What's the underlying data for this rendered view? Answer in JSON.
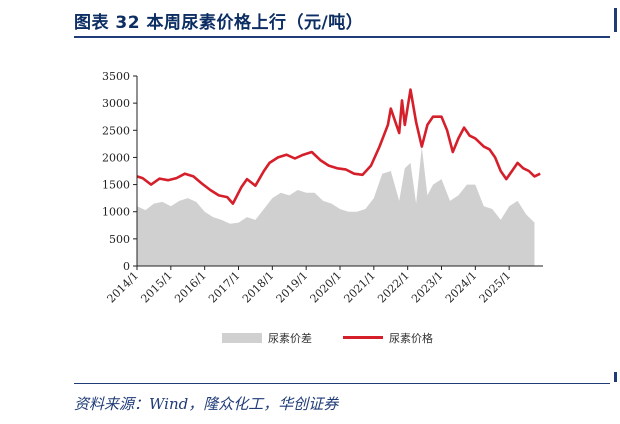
{
  "header": {
    "title": "图表 32   本周尿素价格上行（元/吨）"
  },
  "source": {
    "text": "资料来源：Wind，隆众化工，华创证券"
  },
  "colors": {
    "price": "#d51f2a",
    "spread": "#d0d0d0",
    "accent": "#1f3b78"
  },
  "chart_data": {
    "type": "area",
    "title": "本周尿素价格上行（元/吨）",
    "xlabel": "",
    "ylabel": "",
    "ylim": [
      0,
      3500
    ],
    "yticks": [
      0,
      500,
      1000,
      1500,
      2000,
      2500,
      3000,
      3500
    ],
    "xlim": [
      "2014-01",
      "2026-01"
    ],
    "xticks": [
      "2014/1",
      "2015/1",
      "2016/1",
      "2017/1",
      "2018/1",
      "2019/1",
      "2020/1",
      "2021/1",
      "2022/1",
      "2023/1",
      "2024/1",
      "2025/1"
    ],
    "grid": false,
    "legend": "bottom-center",
    "series": [
      {
        "name": "尿素价差",
        "type": "area",
        "color": "#d0d0d0",
        "points": [
          [
            "2014-01",
            1100
          ],
          [
            "2014-04",
            1030
          ],
          [
            "2014-07",
            1150
          ],
          [
            "2014-10",
            1180
          ],
          [
            "2015-01",
            1100
          ],
          [
            "2015-04",
            1200
          ],
          [
            "2015-07",
            1250
          ],
          [
            "2015-10",
            1180
          ],
          [
            "2016-01",
            1000
          ],
          [
            "2016-04",
            900
          ],
          [
            "2016-07",
            850
          ],
          [
            "2016-10",
            780
          ],
          [
            "2017-01",
            800
          ],
          [
            "2017-04",
            900
          ],
          [
            "2017-07",
            850
          ],
          [
            "2017-10",
            1050
          ],
          [
            "2018-01",
            1250
          ],
          [
            "2018-04",
            1350
          ],
          [
            "2018-07",
            1300
          ],
          [
            "2018-10",
            1400
          ],
          [
            "2019-01",
            1350
          ],
          [
            "2019-04",
            1350
          ],
          [
            "2019-07",
            1200
          ],
          [
            "2019-10",
            1150
          ],
          [
            "2020-01",
            1050
          ],
          [
            "2020-04",
            1000
          ],
          [
            "2020-07",
            1000
          ],
          [
            "2020-10",
            1050
          ],
          [
            "2021-01",
            1250
          ],
          [
            "2021-04",
            1700
          ],
          [
            "2021-07",
            1750
          ],
          [
            "2021-10",
            1200
          ],
          [
            "2021-12",
            1800
          ],
          [
            "2022-02",
            1900
          ],
          [
            "2022-04",
            1150
          ],
          [
            "2022-06",
            2200
          ],
          [
            "2022-08",
            1300
          ],
          [
            "2022-10",
            1500
          ],
          [
            "2023-01",
            1600
          ],
          [
            "2023-04",
            1200
          ],
          [
            "2023-07",
            1300
          ],
          [
            "2023-10",
            1500
          ],
          [
            "2024-01",
            1500
          ],
          [
            "2024-04",
            1100
          ],
          [
            "2024-07",
            1050
          ],
          [
            "2024-10",
            850
          ],
          [
            "2025-01",
            1100
          ],
          [
            "2025-04",
            1200
          ],
          [
            "2025-07",
            950
          ],
          [
            "2025-10",
            800
          ]
        ]
      },
      {
        "name": "尿素价格",
        "type": "line",
        "color": "#d51f2a",
        "points": [
          [
            "2014-01",
            1650
          ],
          [
            "2014-03",
            1620
          ],
          [
            "2014-06",
            1500
          ],
          [
            "2014-09",
            1610
          ],
          [
            "2014-12",
            1580
          ],
          [
            "2015-03",
            1620
          ],
          [
            "2015-06",
            1700
          ],
          [
            "2015-09",
            1650
          ],
          [
            "2015-12",
            1520
          ],
          [
            "2016-03",
            1400
          ],
          [
            "2016-06",
            1300
          ],
          [
            "2016-09",
            1270
          ],
          [
            "2016-11",
            1150
          ],
          [
            "2017-02",
            1450
          ],
          [
            "2017-04",
            1600
          ],
          [
            "2017-07",
            1480
          ],
          [
            "2017-10",
            1750
          ],
          [
            "2017-12",
            1900
          ],
          [
            "2018-03",
            2000
          ],
          [
            "2018-06",
            2050
          ],
          [
            "2018-09",
            1980
          ],
          [
            "2018-12",
            2050
          ],
          [
            "2019-03",
            2100
          ],
          [
            "2019-06",
            1950
          ],
          [
            "2019-09",
            1850
          ],
          [
            "2019-12",
            1800
          ],
          [
            "2020-03",
            1780
          ],
          [
            "2020-06",
            1700
          ],
          [
            "2020-09",
            1680
          ],
          [
            "2020-12",
            1850
          ],
          [
            "2021-03",
            2200
          ],
          [
            "2021-06",
            2600
          ],
          [
            "2021-07",
            2900
          ],
          [
            "2021-09",
            2600
          ],
          [
            "2021-10",
            2450
          ],
          [
            "2021-11",
            3050
          ],
          [
            "2021-12",
            2600
          ],
          [
            "2022-02",
            3250
          ],
          [
            "2022-04",
            2650
          ],
          [
            "2022-06",
            2200
          ],
          [
            "2022-08",
            2600
          ],
          [
            "2022-10",
            2750
          ],
          [
            "2023-01",
            2750
          ],
          [
            "2023-03",
            2500
          ],
          [
            "2023-05",
            2100
          ],
          [
            "2023-07",
            2350
          ],
          [
            "2023-09",
            2550
          ],
          [
            "2023-11",
            2400
          ],
          [
            "2024-01",
            2350
          ],
          [
            "2024-04",
            2200
          ],
          [
            "2024-06",
            2150
          ],
          [
            "2024-08",
            2000
          ],
          [
            "2024-10",
            1750
          ],
          [
            "2024-12",
            1600
          ],
          [
            "2025-02",
            1750
          ],
          [
            "2025-04",
            1900
          ],
          [
            "2025-06",
            1800
          ],
          [
            "2025-08",
            1750
          ],
          [
            "2025-10",
            1650
          ],
          [
            "2025-12",
            1700
          ]
        ]
      }
    ]
  }
}
